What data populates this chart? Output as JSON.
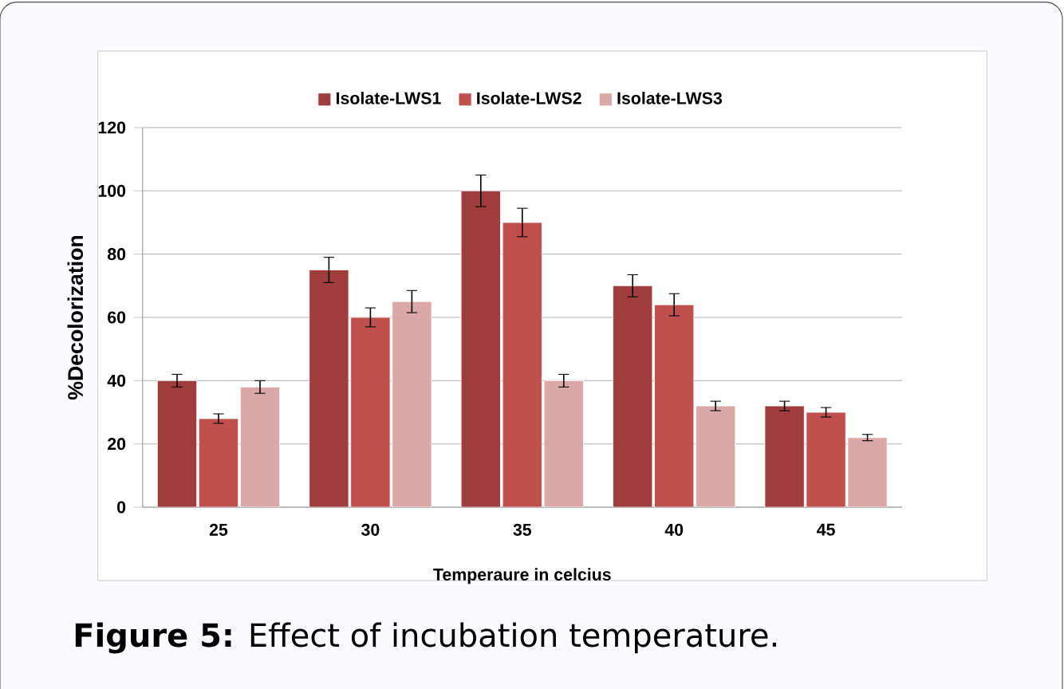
{
  "chart_data": {
    "type": "bar",
    "xlabel": "Temperaure in celcius",
    "ylabel": "%Decolorization",
    "categories": [
      "25",
      "30",
      "35",
      "40",
      "45"
    ],
    "series": [
      {
        "name": "Isolate-LWS1",
        "color": "#9e3d3b",
        "values": [
          40,
          75,
          100,
          70,
          32
        ],
        "errors": [
          2,
          4,
          5,
          3.5,
          1.5
        ]
      },
      {
        "name": "Isolate-LWS2",
        "color": "#c0504d",
        "values": [
          28,
          60,
          90,
          64,
          30
        ],
        "errors": [
          1.5,
          3,
          4.5,
          3.5,
          1.5
        ]
      },
      {
        "name": "Isolate-LWS3",
        "color": "#d9a8a7",
        "values": [
          38,
          65,
          40,
          32,
          22
        ],
        "errors": [
          2,
          3.5,
          2,
          1.5,
          1
        ]
      }
    ],
    "ylim": [
      0,
      120
    ],
    "yticks": [
      0,
      20,
      40,
      60,
      80,
      100,
      120
    ],
    "grid": "y",
    "legend": "top",
    "annotations": [
      "**Figure 5:** Effect of incubation temperature."
    ]
  }
}
